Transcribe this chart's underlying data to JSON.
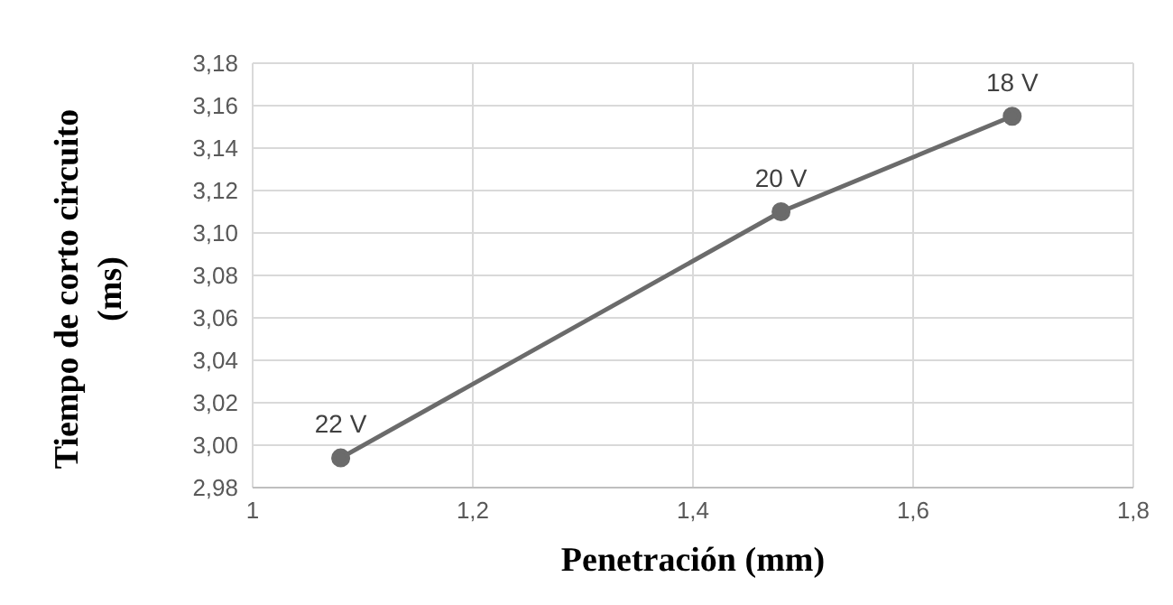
{
  "chart_data": {
    "type": "line",
    "xlabel": "Penetración (mm)",
    "ylabel": "Tiempo de corto circuito (ms)",
    "x": [
      1.08,
      1.48,
      1.69
    ],
    "series": [
      {
        "color": "#6b6b6b",
        "values": [
          2.994,
          3.11,
          3.155
        ]
      }
    ],
    "xlim": [
      1,
      1.8
    ],
    "xticks": [
      1,
      {
        "value": 1.2,
        "label": "1,2"
      },
      {
        "value": 1.4,
        "label": "1,4"
      },
      {
        "value": 1.6,
        "label": "1,6"
      },
      {
        "value": 1.8,
        "label": "1,8"
      }
    ],
    "ylim": [
      2.98,
      3.18
    ],
    "yticks": [
      {
        "value": 2.98,
        "label": "2,98"
      },
      {
        "value": 3,
        "label": "3,00"
      },
      {
        "value": 3.02,
        "label": "3,02"
      },
      {
        "value": 3.04,
        "label": "3,04"
      },
      {
        "value": 3.06,
        "label": "3,06"
      },
      {
        "value": 3.08,
        "label": "3,08"
      },
      {
        "value": 3.1,
        "label": "3,10"
      },
      {
        "value": 3.12,
        "label": "3,12"
      },
      {
        "value": 3.14,
        "label": "3,14"
      },
      {
        "value": 3.16,
        "label": "3,16"
      },
      {
        "value": 3.18,
        "label": "3,18"
      }
    ],
    "grid": true,
    "marker": "circle",
    "line_style": "solid",
    "annotations": [
      {
        "text": "22 V",
        "x": 1.08,
        "y": 2.994
      },
      {
        "text": "20 V",
        "x": 1.48,
        "y": 3.11
      },
      {
        "text": "18 V",
        "x": 1.69,
        "y": 3.155
      }
    ]
  }
}
